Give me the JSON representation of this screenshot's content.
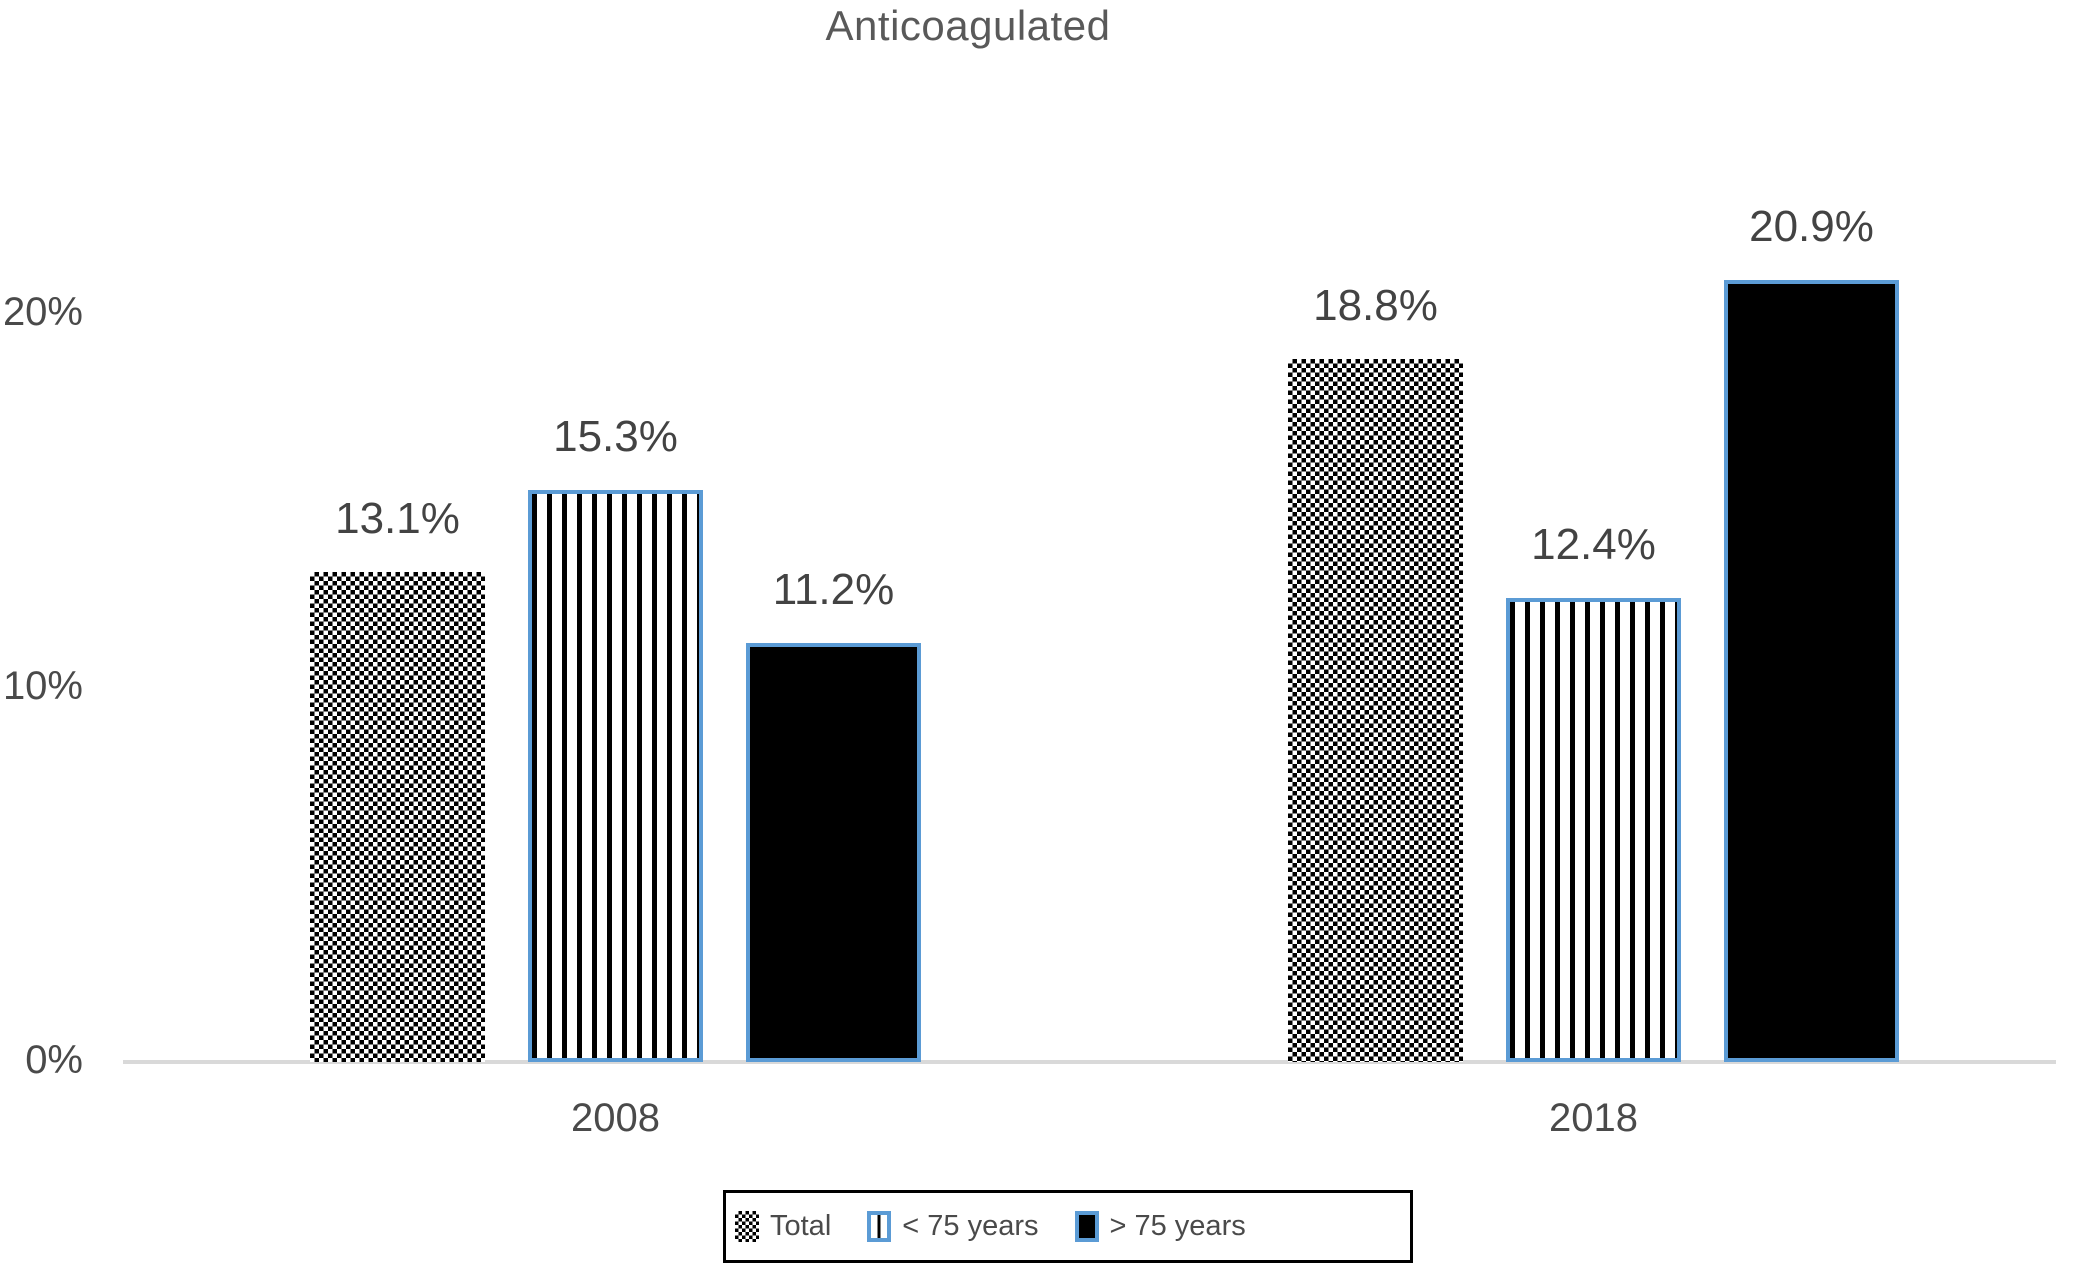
{
  "title": "Anticoagulated",
  "colors": {
    "accent_blue": "#5B9BD5",
    "title_gray": "#595959",
    "label_gray": "#434343",
    "axis_line_gray": "#d9d9d9"
  },
  "chart_data": {
    "type": "bar",
    "title": "Anticoagulated",
    "categories": [
      "2008",
      "2018"
    ],
    "series": [
      {
        "name": "Total",
        "pattern": "checker",
        "values": [
          13.1,
          18.8
        ],
        "labels": [
          "13.1%",
          "18.8%"
        ]
      },
      {
        "name": "< 75 years",
        "pattern": "vstripe",
        "values": [
          15.3,
          12.4
        ],
        "labels": [
          "15.3%",
          "12.4%"
        ]
      },
      {
        "name": "> 75 years",
        "pattern": "solid",
        "values": [
          11.2,
          20.9
        ],
        "labels": [
          "11.2%",
          "20.9%"
        ]
      }
    ],
    "yticks": [
      {
        "value": 0,
        "label": "0%"
      },
      {
        "value": 10,
        "label": "10%"
      },
      {
        "value": 20,
        "label": "20%"
      }
    ],
    "xlabel": "",
    "ylabel": "",
    "ylim": [
      0,
      26
    ],
    "grid": false,
    "legend_position": "bottom"
  },
  "legend": {
    "items": [
      {
        "label": "Total",
        "pattern": "checker"
      },
      {
        "label": "< 75 years",
        "pattern": "vstripe"
      },
      {
        "label": "> 75 years",
        "pattern": "solid"
      }
    ]
  }
}
